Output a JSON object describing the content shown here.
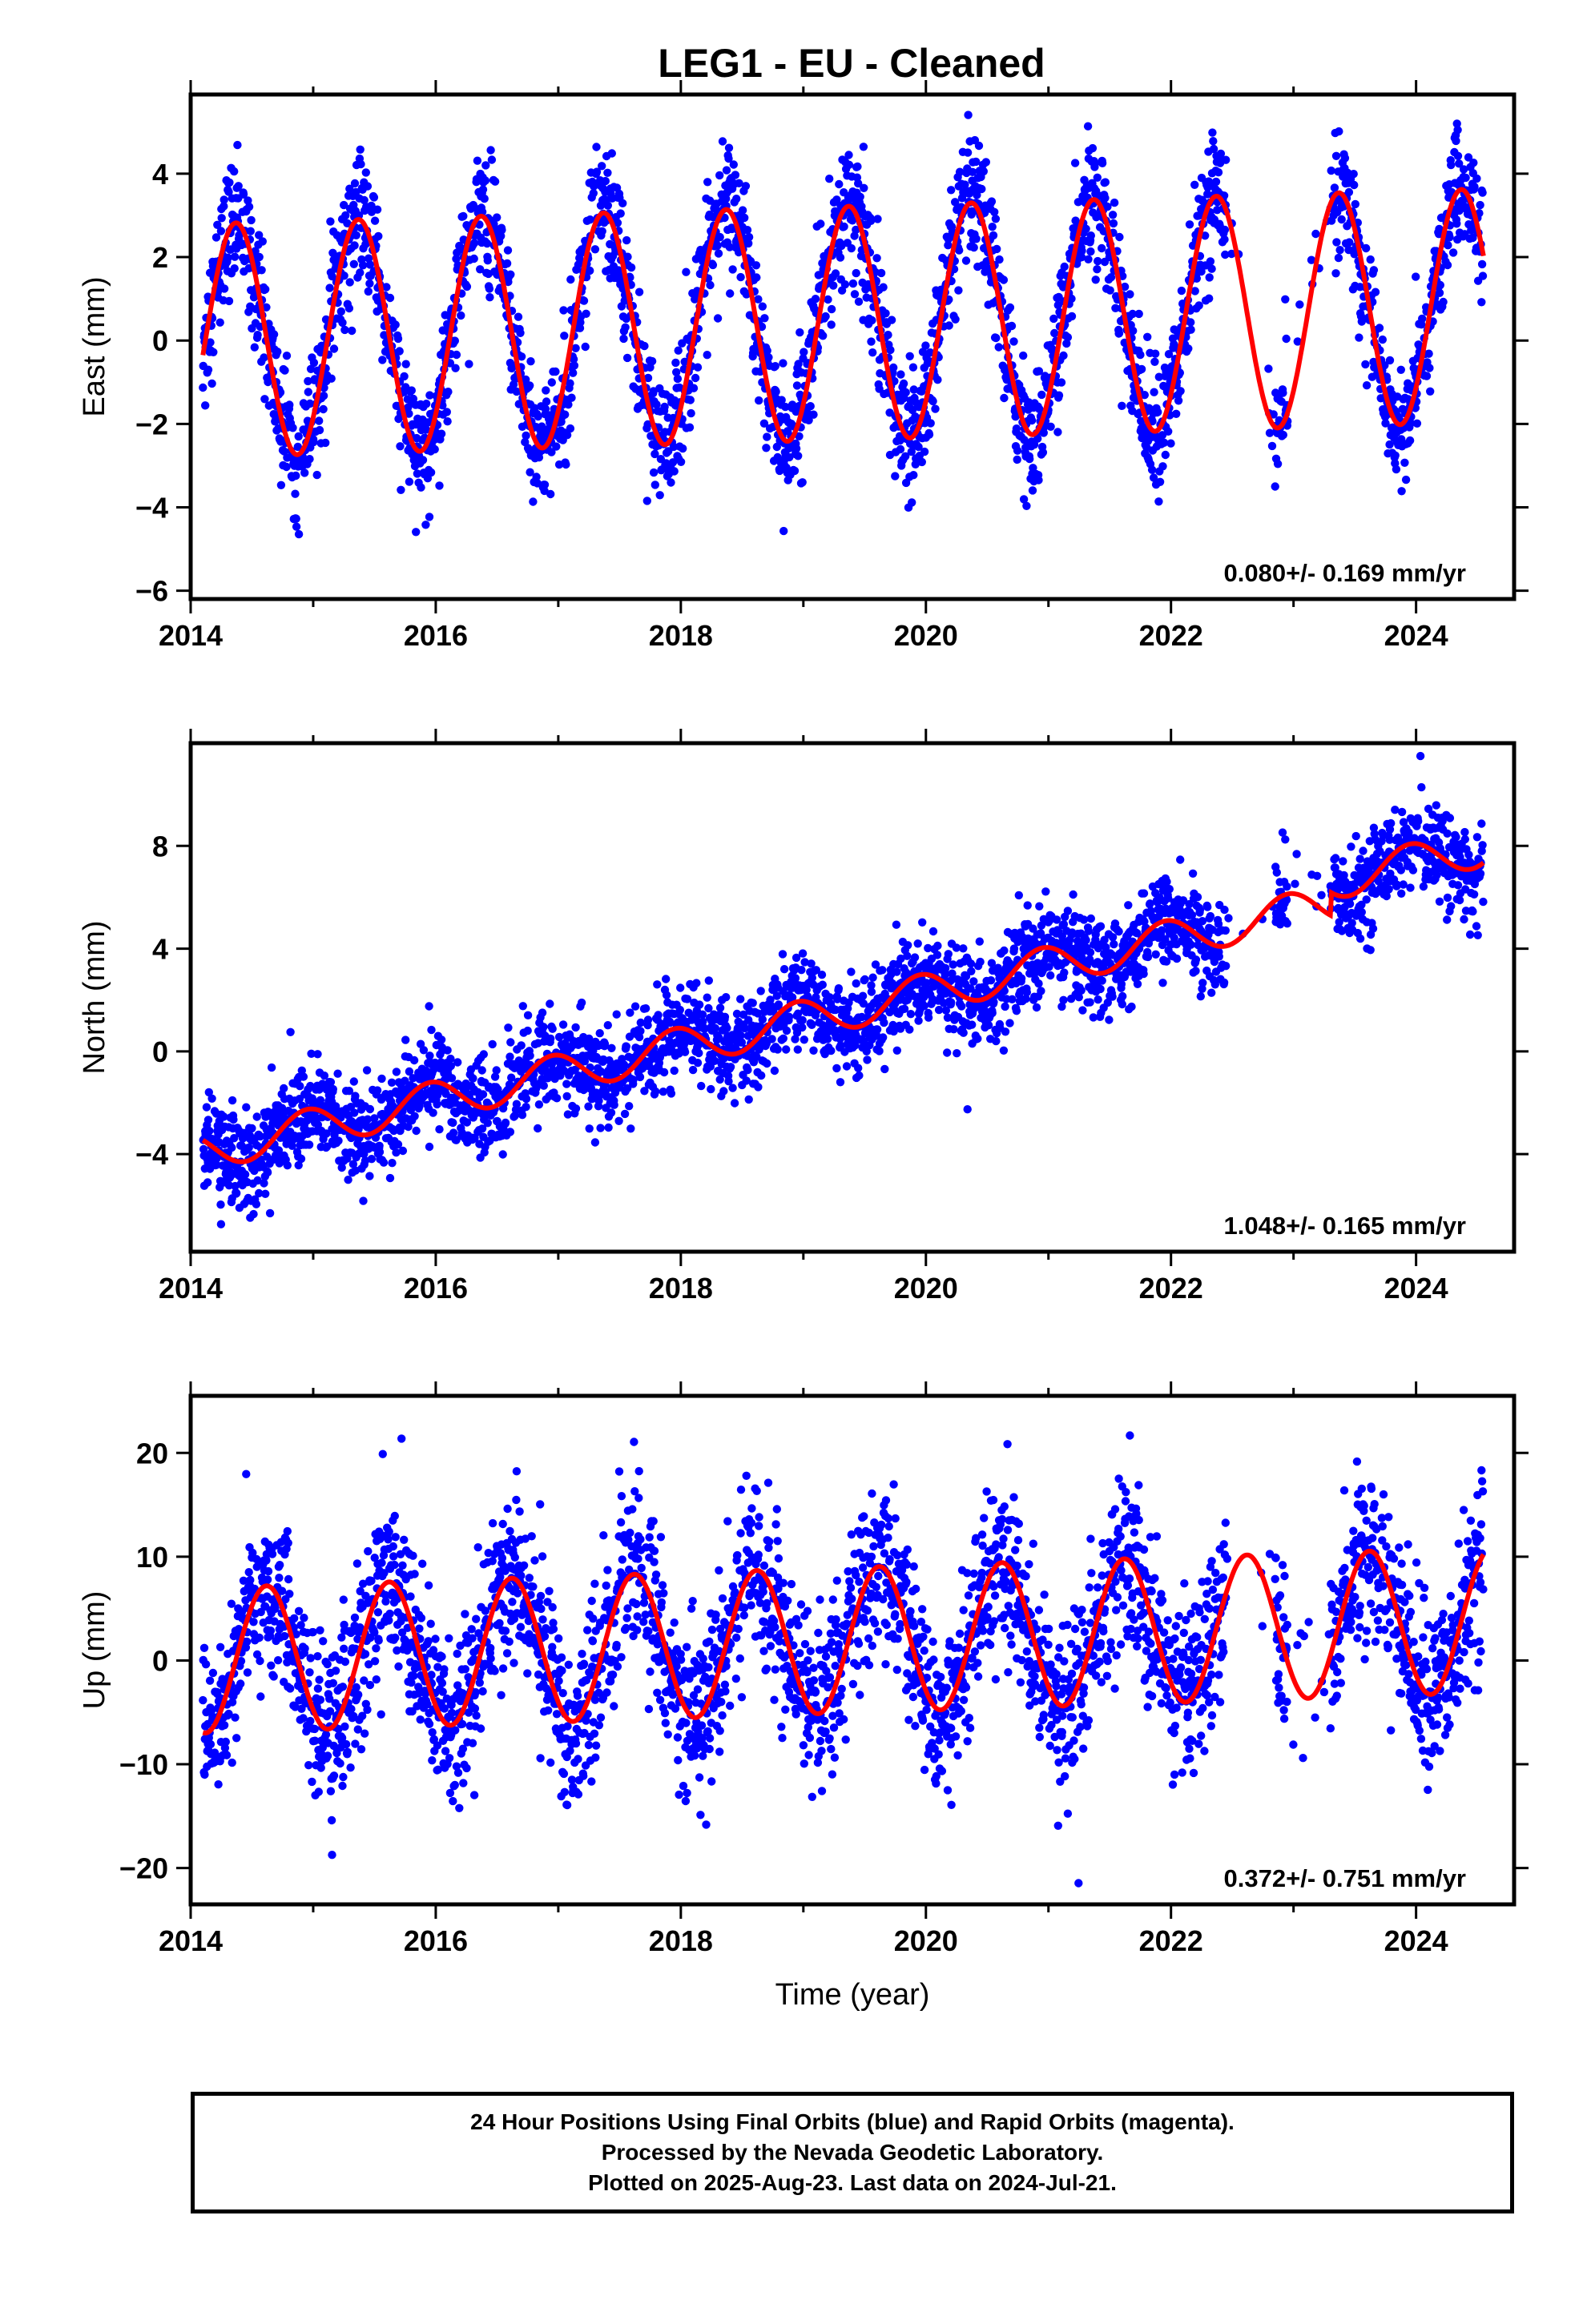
{
  "title": "LEG1  - EU - Cleaned",
  "colors": {
    "data_points": "#0000ff",
    "model_fit": "#ff0000",
    "axes": "#000000"
  },
  "caption": {
    "line1": "24 Hour Positions Using Final Orbits (blue) and Rapid Orbits (magenta).",
    "line2": "Processed by the Nevada Geodetic Laboratory.",
    "line3": "Plotted on 2025-Aug-23. Last data on 2024-Jul-21."
  },
  "chart_data": [
    {
      "type": "scatter",
      "ylabel": "East (mm)",
      "xlabel": "",
      "xlim": [
        2014.0,
        2024.8
      ],
      "ylim": [
        -6.2,
        5.9
      ],
      "xticks": [
        2014,
        2016,
        2018,
        2020,
        2022,
        2024
      ],
      "yticks": [
        -6,
        -4,
        -2,
        0,
        2,
        4
      ],
      "velocity_label": "0.080+/- 0.169 mm/yr",
      "data_start": 2014.1,
      "data_end": 2024.55,
      "model": {
        "offset": 0.0,
        "rate_mm_per_yr": 0.08,
        "annual_amplitude": 2.8,
        "annual_peak": 2014.37,
        "semiannual_amplitude": 0.0
      },
      "scatter_sigma_mm": 0.75,
      "gaps": [
        [
          2022.45,
          2022.85
        ],
        [
          2022.95,
          2023.3
        ]
      ],
      "legend": "none",
      "grid": false
    },
    {
      "type": "scatter",
      "ylabel": "North (mm)",
      "xlabel": "",
      "xlim": [
        2014.0,
        2024.8
      ],
      "ylim": [
        -7.8,
        12.0
      ],
      "xticks": [
        2014,
        2016,
        2018,
        2020,
        2022,
        2024
      ],
      "yticks": [
        -4,
        0,
        4,
        8
      ],
      "velocity_label": "1.048+/- 0.165 mm/yr",
      "data_start": 2014.1,
      "data_end": 2024.55,
      "model": {
        "offset": -3.9,
        "offset_at": 2014.1,
        "rate_mm_per_yr": 1.048,
        "annual_amplitude": 0.75,
        "annual_peak": 2014.95,
        "semiannual_amplitude": 0.0,
        "step": {
          "at": 2023.3,
          "size": 0.9
        }
      },
      "scatter_sigma_mm": 0.9,
      "gaps": [
        [
          2022.45,
          2022.85
        ],
        [
          2022.95,
          2023.3
        ]
      ],
      "legend": "none",
      "grid": false
    },
    {
      "type": "scatter",
      "ylabel": "Up (mm)",
      "xlabel": "Time (year)",
      "xlim": [
        2014.0,
        2024.8
      ],
      "ylim": [
        -23.5,
        25.5
      ],
      "xticks": [
        2014,
        2016,
        2018,
        2020,
        2022,
        2024
      ],
      "yticks": [
        -20,
        -10,
        0,
        10,
        20
      ],
      "velocity_label": "0.372+/- 0.751 mm/yr",
      "data_start": 2014.1,
      "data_end": 2024.55,
      "model": {
        "offset": 0.0,
        "rate_mm_per_yr": 0.372,
        "annual_amplitude": 7.0,
        "annual_peak": 2014.62,
        "semiannual_amplitude": 0.0
      },
      "scatter_sigma_mm": 4.0,
      "gaps": [
        [
          2022.45,
          2022.85
        ],
        [
          2022.95,
          2023.3
        ]
      ],
      "legend": "none",
      "grid": false
    }
  ]
}
